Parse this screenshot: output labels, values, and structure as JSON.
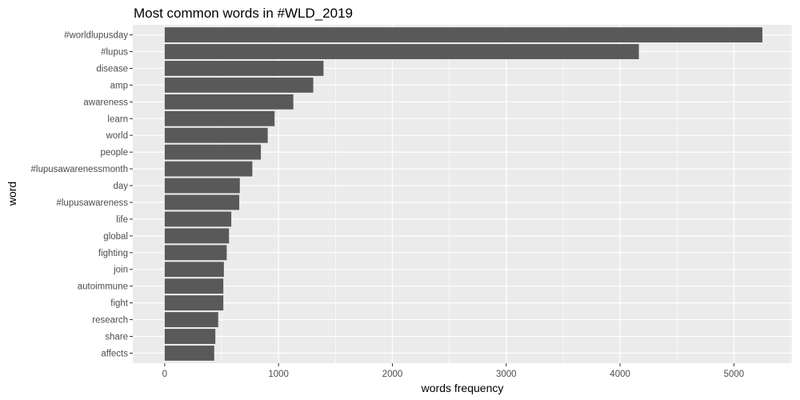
{
  "chart_data": {
    "type": "bar",
    "orientation": "horizontal",
    "title": "Most common words in #WLD_2019",
    "xlabel": "words frequency",
    "ylabel": "word",
    "xlim": [
      -280,
      5510
    ],
    "xticks": [
      0,
      1000,
      2000,
      3000,
      4000,
      5000
    ],
    "xtick_labels": [
      "0",
      "1000",
      "2000",
      "3000",
      "4000",
      "5000"
    ],
    "grid": true,
    "categories": [
      "#worldlupusday",
      "#lupus",
      "disease",
      "amp",
      "awareness",
      "learn",
      "world",
      "people",
      "#lupusawarenessmonth",
      "day",
      "#lupusawareness",
      "life",
      "global",
      "fighting",
      "join",
      "autoimmune",
      "fight",
      "research",
      "share",
      "affects"
    ],
    "values": [
      5250,
      4165,
      1395,
      1305,
      1130,
      965,
      905,
      845,
      770,
      660,
      655,
      585,
      565,
      545,
      520,
      515,
      515,
      470,
      445,
      435
    ],
    "bar_color": "#595959",
    "panel_color": "#ebebeb",
    "grid_color": "#ffffff"
  }
}
